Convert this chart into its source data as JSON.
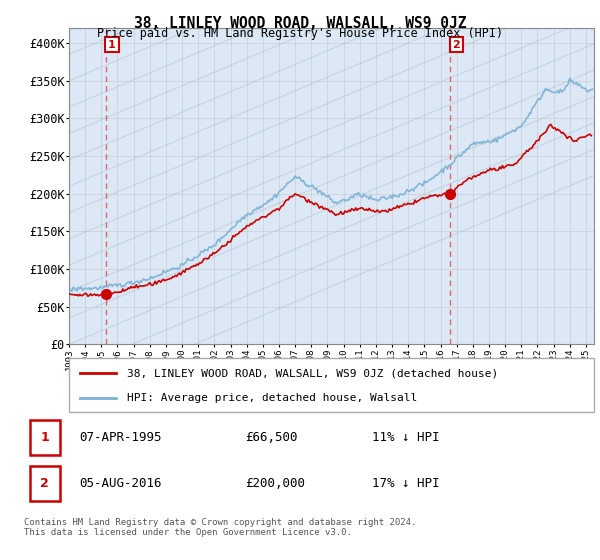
{
  "title": "38, LINLEY WOOD ROAD, WALSALL, WS9 0JZ",
  "subtitle": "Price paid vs. HM Land Registry's House Price Index (HPI)",
  "sale_info": [
    {
      "label": "1",
      "date": "07-APR-1995",
      "price": "£66,500",
      "hpi": "11% ↓ HPI"
    },
    {
      "label": "2",
      "date": "05-AUG-2016",
      "price": "£200,000",
      "hpi": "17% ↓ HPI"
    }
  ],
  "legend_line1": "38, LINLEY WOOD ROAD, WALSALL, WS9 0JZ (detached house)",
  "legend_line2": "HPI: Average price, detached house, Walsall",
  "footer": "Contains HM Land Registry data © Crown copyright and database right 2024.\nThis data is licensed under the Open Government Licence v3.0.",
  "ylim": [
    0,
    420000
  ],
  "yticks": [
    0,
    50000,
    100000,
    150000,
    200000,
    250000,
    300000,
    350000,
    400000
  ],
  "ytick_labels": [
    "£0",
    "£50K",
    "£100K",
    "£150K",
    "£200K",
    "£250K",
    "£300K",
    "£350K",
    "£400K"
  ],
  "xmin": 1993.0,
  "xmax": 2025.5,
  "bg_color": "#dce8f5",
  "hatch_bg_color": "#c8d8ea",
  "grid_color": "#bbbbbb",
  "red_color": "#cc0000",
  "blue_color": "#7ab0d4",
  "vline_color": "#e05050",
  "box_edge_color": "#cc0000",
  "sale_year1": 1995.267,
  "sale_price1": 66500,
  "sale_year2": 2016.596,
  "sale_price2": 200000
}
